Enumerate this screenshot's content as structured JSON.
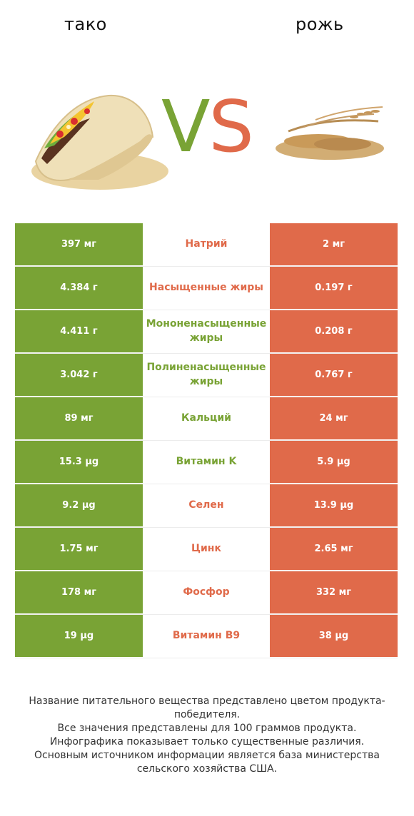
{
  "header": {
    "left_food": "тако",
    "right_food": "рожь",
    "vs_v": "V",
    "vs_s": "S"
  },
  "colors": {
    "left_winner": "#79a335",
    "right_winner": "#e06a4a"
  },
  "chart_data": {
    "type": "table",
    "columns": [
      "тако",
      "",
      "рожь"
    ],
    "rows": [
      {
        "nutrient": "Натрий",
        "left": "397 мг",
        "right": "2 мг",
        "winner": "right"
      },
      {
        "nutrient": "Насыщенные жиры",
        "left": "4.384 г",
        "right": "0.197 г",
        "winner": "right"
      },
      {
        "nutrient": "Мононенасыщенные жиры",
        "left": "4.411 г",
        "right": "0.208 г",
        "winner": "left"
      },
      {
        "nutrient": "Полиненасыщенные жиры",
        "left": "3.042 г",
        "right": "0.767 г",
        "winner": "left"
      },
      {
        "nutrient": "Кальций",
        "left": "89 мг",
        "right": "24 мг",
        "winner": "left"
      },
      {
        "nutrient": "Витамин K",
        "left": "15.3 µg",
        "right": "5.9 µg",
        "winner": "left"
      },
      {
        "nutrient": "Селен",
        "left": "9.2 µg",
        "right": "13.9 µg",
        "winner": "right"
      },
      {
        "nutrient": "Цинк",
        "left": "1.75 мг",
        "right": "2.65 мг",
        "winner": "right"
      },
      {
        "nutrient": "Фосфор",
        "left": "178 мг",
        "right": "332 мг",
        "winner": "right"
      },
      {
        "nutrient": "Витамин B9",
        "left": "19 µg",
        "right": "38 µg",
        "winner": "right"
      }
    ]
  },
  "footer": {
    "line1": "Название питательного вещества представлено цветом продукта-победителя.",
    "line2": "Все значения представлены для 100 граммов продукта.",
    "line3": "Инфографика показывает только существенные различия.",
    "line4": "Основным источником информации является база министерства сельского хозяйства США."
  }
}
